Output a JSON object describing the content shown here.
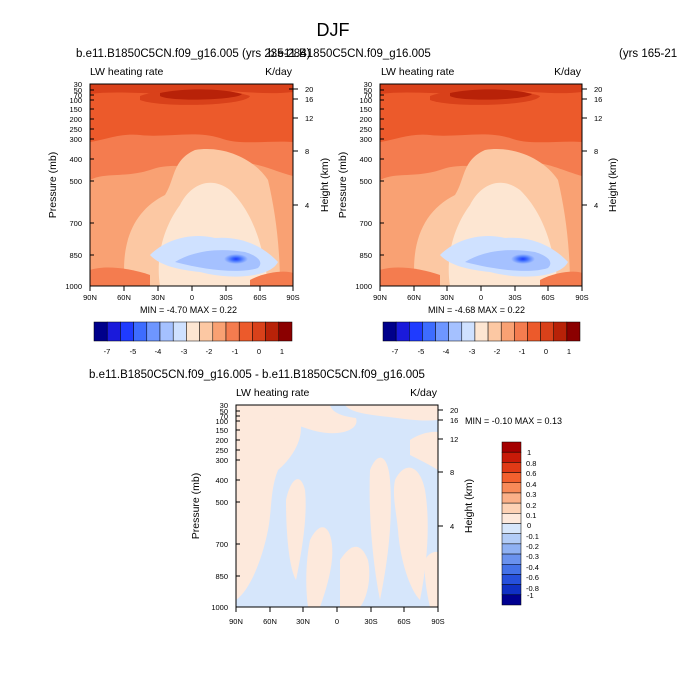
{
  "page": {
    "title": "DJF"
  },
  "chart_data": [
    {
      "type": "heatmap",
      "case_label": "b.e11.B1850C5CN.f09_g16.005 (yrs 235-284)",
      "field_label": "LW heating rate",
      "units": "K/day",
      "ylabel": "Pressure (mb)",
      "ylabel_right": "Height (km)",
      "x_ticks": [
        "90N",
        "60N",
        "30N",
        "0",
        "30S",
        "60S",
        "90S"
      ],
      "y_ticks": [
        "30",
        "50",
        "70",
        "100",
        "150",
        "200",
        "250",
        "300",
        "400",
        "500",
        "700",
        "850",
        "1000"
      ],
      "y_ticks_right": [
        "20",
        "16",
        "12",
        "8",
        "4"
      ],
      "stats": "MIN = -4.70  MAX =  0.22",
      "colorbar_labels": [
        "-7",
        "-5",
        "-4",
        "-3",
        "-2",
        "-1",
        "0",
        "1"
      ],
      "colorbar_colors": [
        "#00008b",
        "#1a1adb",
        "#1f3bff",
        "#3d6cff",
        "#6e96ff",
        "#a5c1ff",
        "#cfe1ff",
        "#fde6d2",
        "#fcc8a3",
        "#f9a173",
        "#f47c4f",
        "#ec5a2b",
        "#d9411a",
        "#b82208",
        "#8b0000"
      ],
      "min": -4.7,
      "max": 0.22
    },
    {
      "type": "heatmap",
      "case_label": "b.e11.B1850C5CN.f09_g16.005",
      "case_years": "(yrs 165-21",
      "field_label": "LW heating rate",
      "units": "K/day",
      "ylabel": "Pressure (mb)",
      "ylabel_right": "Height (km)",
      "x_ticks": [
        "90N",
        "60N",
        "30N",
        "0",
        "30S",
        "60S",
        "90S"
      ],
      "y_ticks": [
        "30",
        "50",
        "70",
        "100",
        "150",
        "200",
        "250",
        "300",
        "400",
        "500",
        "700",
        "850",
        "1000"
      ],
      "y_ticks_right": [
        "20",
        "16",
        "12",
        "8",
        "4"
      ],
      "stats": "MIN = -4.68  MAX =  0.22",
      "colorbar_labels": [
        "-7",
        "-5",
        "-4",
        "-3",
        "-2",
        "-1",
        "0",
        "1"
      ],
      "min": -4.68,
      "max": 0.22
    },
    {
      "type": "heatmap",
      "case_label": "b.e11.B1850C5CN.f09_g16.005 - b.e11.B1850C5CN.f09_g16.005",
      "field_label": "LW heating rate",
      "units": "K/day",
      "ylabel": "Pressure (mb)",
      "ylabel_right": "Height (km)",
      "x_ticks": [
        "90N",
        "60N",
        "30N",
        "0",
        "30S",
        "60S",
        "90S"
      ],
      "y_ticks": [
        "30",
        "50",
        "70",
        "100",
        "150",
        "200",
        "250",
        "300",
        "400",
        "500",
        "700",
        "850",
        "1000"
      ],
      "y_ticks_right": [
        "20",
        "16",
        "12",
        "8",
        "4"
      ],
      "stats": "MIN = -0.10  MAX =  0.13",
      "colorbar_labels": [
        "1",
        "0.8",
        "0.6",
        "0.4",
        "0.3",
        "0.2",
        "0.1",
        "0",
        "-0.1",
        "-0.2",
        "-0.3",
        "-0.4",
        "-0.6",
        "-0.8",
        "-1"
      ],
      "colorbar_colors": [
        "#a50000",
        "#c81a08",
        "#e03a16",
        "#f2602e",
        "#f88a58",
        "#fbb088",
        "#fdd2b5",
        "#fde9dc",
        "#d6e6fb",
        "#b2ccf7",
        "#8fb1f3",
        "#6a92ee",
        "#4472e8",
        "#2650dc",
        "#1030c4",
        "#000090"
      ],
      "min": -0.1,
      "max": 0.13
    }
  ]
}
